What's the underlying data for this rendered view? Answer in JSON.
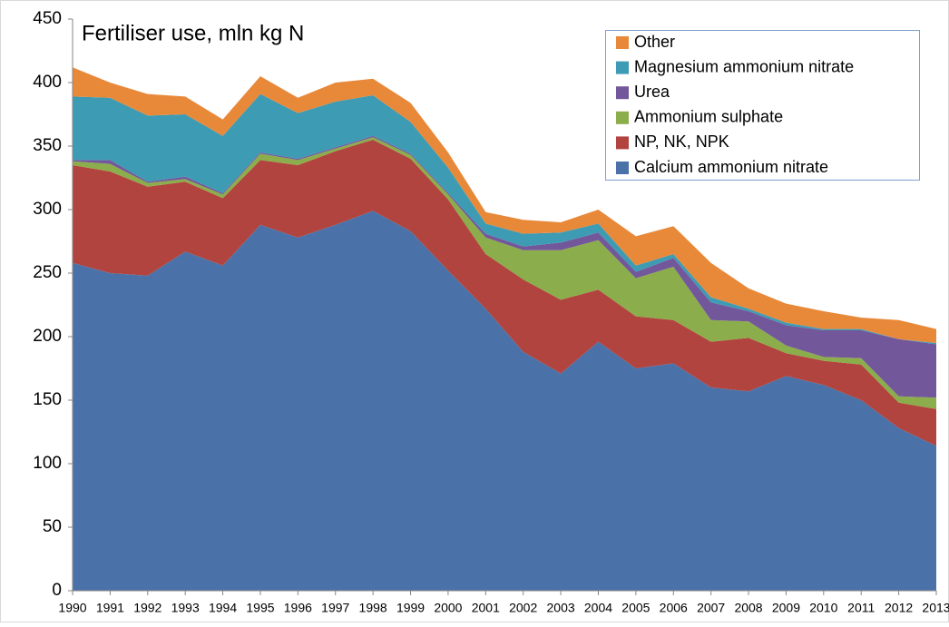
{
  "chart_data": {
    "type": "stacked_area",
    "title": "Fertiliser use, mln kg N",
    "categories": [
      "1990",
      "1991",
      "1992",
      "1993",
      "1994",
      "1995",
      "1996",
      "1997",
      "1998",
      "1999",
      "2000",
      "2001",
      "2002",
      "2003",
      "2004",
      "2005",
      "2006",
      "2007",
      "2008",
      "2009",
      "2010",
      "2011",
      "2012",
      "2013"
    ],
    "series": [
      {
        "name": "Calcium ammonium nitrate",
        "color": "#4a72a8",
        "values": [
          258,
          250,
          248,
          267,
          256,
          288,
          278,
          288,
          299,
          283,
          252,
          222,
          188,
          171,
          196,
          175,
          179,
          160,
          157,
          169,
          162,
          150,
          128,
          114
        ]
      },
      {
        "name": "NP, NK, NPK",
        "color": "#b1443f",
        "values": [
          77,
          80,
          70,
          55,
          53,
          51,
          57,
          58,
          56,
          57,
          56,
          43,
          57,
          58,
          41,
          41,
          34,
          36,
          42,
          18,
          19,
          28,
          20,
          29
        ]
      },
      {
        "name": "Ammonium sulphate",
        "color": "#8cad4b",
        "values": [
          3,
          6,
          3,
          2,
          3,
          5,
          4,
          2,
          2,
          3,
          4,
          13,
          23,
          39,
          39,
          30,
          42,
          17,
          13,
          6,
          3,
          5,
          5,
          9
        ]
      },
      {
        "name": "Urea",
        "color": "#72579a",
        "values": [
          1,
          3,
          1,
          2,
          1,
          1,
          1,
          1,
          1,
          1,
          1,
          3,
          3,
          6,
          6,
          5,
          7,
          14,
          8,
          16,
          21,
          22,
          45,
          42
        ]
      },
      {
        "name": "Magnesium ammonium nitrate",
        "color": "#3d9bb3",
        "values": [
          50,
          49,
          52,
          49,
          45,
          46,
          36,
          36,
          32,
          25,
          20,
          8,
          10,
          8,
          7,
          5,
          3,
          4,
          2,
          2,
          1,
          1,
          0,
          1
        ]
      },
      {
        "name": "Other",
        "color": "#e8893a",
        "values": [
          23,
          12,
          17,
          14,
          13,
          14,
          12,
          15,
          13,
          15,
          12,
          9,
          11,
          8,
          11,
          23,
          22,
          27,
          16,
          15,
          14,
          9,
          15,
          11
        ]
      }
    ],
    "ylim": [
      0,
      450
    ],
    "yticks": [
      0,
      50,
      100,
      150,
      200,
      250,
      300,
      350,
      400,
      450
    ],
    "grid": false,
    "legend": "upper right"
  }
}
